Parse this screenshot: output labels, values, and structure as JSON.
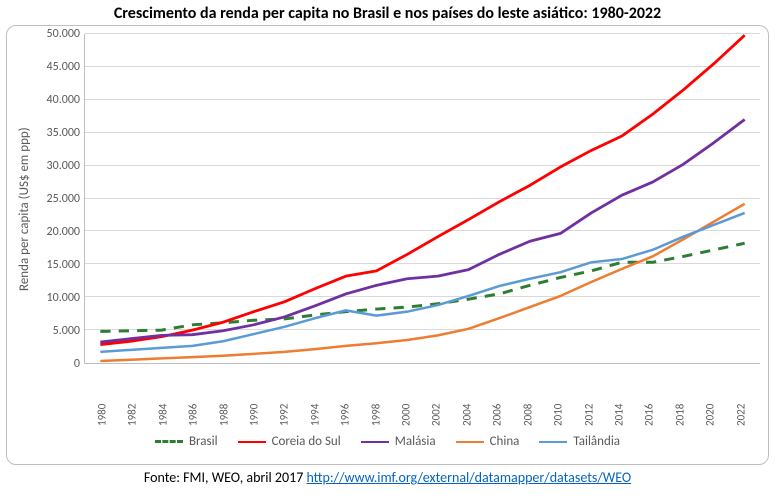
{
  "title": "Crescimento da renda per capita no Brasil e nos países do leste asiático: 1980-2022",
  "ylabel": "Renda per capita (US$ em ppp)",
  "footer_prefix": "Fonte: FMI, WEO, abril 2017 ",
  "footer_link_text": "http://www.imf.org/external/datamapper/datasets/WEO",
  "footer_link_href": "http://www.imf.org/external/datamapper/datasets/WEO",
  "chart": {
    "type": "line",
    "ylim": [
      0,
      50000
    ],
    "ytick_step": 5000,
    "yticks_labels": [
      "0",
      "5.000",
      "10.000",
      "15.000",
      "20.000",
      "25.000",
      "30.000",
      "35.000",
      "40.000",
      "45.000",
      "50.000"
    ],
    "years": [
      1980,
      1982,
      1984,
      1986,
      1988,
      1990,
      1992,
      1994,
      1996,
      1998,
      2000,
      2002,
      2004,
      2006,
      2008,
      2010,
      2012,
      2014,
      2016,
      2018,
      2020,
      2022
    ],
    "background_color": "#ffffff",
    "grid_color": "#d9d9d9",
    "axis_color": "#bfbfbf",
    "label_color": "#595959",
    "title_fontsize": 16,
    "label_fontsize": 13,
    "tick_fontsize": 12,
    "line_width": 2.5,
    "series": [
      {
        "name": "Brasil",
        "label": "Brasil",
        "color": "#2e7d32",
        "dash": "10,8",
        "width": 3,
        "values": [
          4800,
          4900,
          5000,
          5800,
          6100,
          6500,
          6700,
          7300,
          7800,
          8200,
          8500,
          9000,
          9700,
          10500,
          11800,
          13000,
          14000,
          15300,
          15300,
          16200,
          17200,
          18200
        ]
      },
      {
        "name": "Coreia do Sul",
        "label": "Coreia do Sul",
        "color": "#ff0000",
        "dash": "",
        "width": 2.8,
        "values": [
          2800,
          3300,
          4000,
          5000,
          6200,
          7800,
          9300,
          11300,
          13200,
          14000,
          16500,
          19200,
          21800,
          24500,
          27000,
          29800,
          32300,
          34500,
          37800,
          41500,
          45500,
          49800
        ]
      },
      {
        "name": "Malásia",
        "label": "Malásia",
        "color": "#7030a0",
        "dash": "",
        "width": 2.8,
        "values": [
          3200,
          3700,
          4200,
          4300,
          4900,
          5800,
          7000,
          8700,
          10500,
          11800,
          12800,
          13200,
          14200,
          16500,
          18500,
          19700,
          22800,
          25500,
          27500,
          30200,
          33500,
          37000
        ]
      },
      {
        "name": "China",
        "label": "China",
        "color": "#ed7d31",
        "dash": "",
        "width": 2.5,
        "values": [
          300,
          500,
          700,
          900,
          1100,
          1400,
          1700,
          2100,
          2600,
          3000,
          3500,
          4200,
          5200,
          6800,
          8500,
          10200,
          12300,
          14300,
          16200,
          18800,
          21500,
          24200
        ]
      },
      {
        "name": "Tailândia",
        "label": "Tailândia",
        "color": "#5b9bd5",
        "dash": "",
        "width": 2.5,
        "values": [
          1700,
          2000,
          2300,
          2600,
          3300,
          4400,
          5500,
          6800,
          8000,
          7200,
          7800,
          8800,
          10200,
          11700,
          12800,
          13800,
          15300,
          15800,
          17200,
          19200,
          21000,
          22800
        ]
      }
    ]
  }
}
